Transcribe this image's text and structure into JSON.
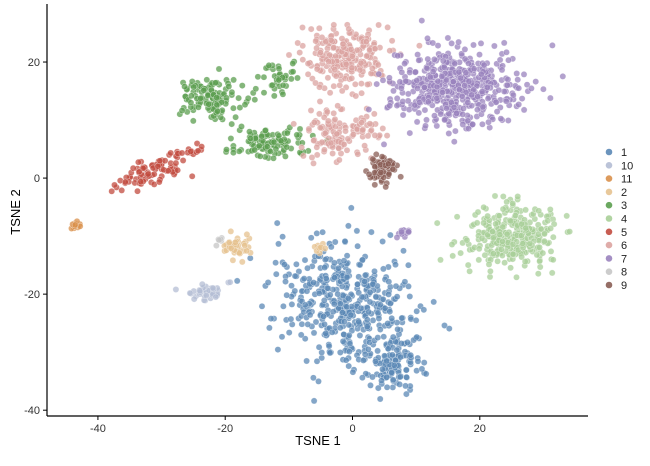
{
  "chart_data": {
    "type": "scatter",
    "title": "",
    "xlabel": "TSNE 1",
    "ylabel": "TSNE 2",
    "xlim": [
      -48,
      37
    ],
    "ylim": [
      -41,
      30
    ],
    "xticks": [
      -40,
      -20,
      0,
      20
    ],
    "yticks": [
      -40,
      -20,
      0,
      20
    ],
    "grid": false,
    "legend_position": "right",
    "point_opacity": 0.75,
    "series": [
      {
        "name": "1",
        "color": "#5b88b6",
        "clusters": [
          {
            "center": [
              -1,
              -22
            ],
            "spread": [
              7.5,
              6.0
            ],
            "count": 450,
            "rotation_deg": -35
          },
          {
            "center": [
              6,
              -32
            ],
            "spread": [
              3.0,
              3.0
            ],
            "count": 120,
            "rotation_deg": -35
          }
        ]
      },
      {
        "name": "10",
        "color": "#b4bdd4",
        "clusters": [
          {
            "center": [
              -23,
              -19.5
            ],
            "spread": [
              2.2,
              1.2
            ],
            "count": 45,
            "rotation_deg": 20
          }
        ]
      },
      {
        "name": "11",
        "color": "#d9904b",
        "clusters": [
          {
            "center": [
              -43.5,
              -8
            ],
            "spread": [
              0.7,
              0.4
            ],
            "count": 18,
            "rotation_deg": 0
          }
        ]
      },
      {
        "name": "2",
        "color": "#e6c28f",
        "clusters": [
          {
            "center": [
              -18,
              -12
            ],
            "spread": [
              1.6,
              1.6
            ],
            "count": 45,
            "rotation_deg": 0
          },
          {
            "center": [
              -5,
              -12
            ],
            "spread": [
              0.8,
              0.6
            ],
            "count": 10,
            "rotation_deg": 0
          }
        ]
      },
      {
        "name": "3",
        "color": "#5b9e4f",
        "clusters": [
          {
            "center": [
              -22,
              14
            ],
            "spread": [
              3.5,
              2.5
            ],
            "count": 130,
            "rotation_deg": 0
          },
          {
            "center": [
              -13,
              6
            ],
            "spread": [
              4.0,
              1.8
            ],
            "count": 110,
            "rotation_deg": 0
          },
          {
            "center": [
              -12,
              17
            ],
            "spread": [
              2.0,
              2.2
            ],
            "count": 40,
            "rotation_deg": 0
          }
        ]
      },
      {
        "name": "4",
        "color": "#a8cf98",
        "clusters": [
          {
            "center": [
              25,
              -10
            ],
            "spread": [
              4.5,
              3.5
            ],
            "count": 300,
            "rotation_deg": 0
          }
        ]
      },
      {
        "name": "5",
        "color": "#c24b3f",
        "clusters": [
          {
            "center": [
              -32,
              1
            ],
            "spread": [
              4.0,
              1.4
            ],
            "count": 90,
            "rotation_deg": 25
          },
          {
            "center": [
              -26,
              4.5
            ],
            "spread": [
              1.5,
              0.5
            ],
            "count": 12,
            "rotation_deg": 15
          }
        ]
      },
      {
        "name": "6",
        "color": "#dba3a0",
        "clusters": [
          {
            "center": [
              -1,
              21
            ],
            "spread": [
              4.5,
              3.5
            ],
            "count": 240,
            "rotation_deg": 0
          },
          {
            "center": [
              -4,
              8
            ],
            "spread": [
              2.5,
              3.5
            ],
            "count": 90,
            "rotation_deg": 0
          },
          {
            "center": [
              2,
              8
            ],
            "spread": [
              2.0,
              2.5
            ],
            "count": 40,
            "rotation_deg": 0
          }
        ]
      },
      {
        "name": "7",
        "color": "#9a83be",
        "clusters": [
          {
            "center": [
              16,
              16
            ],
            "spread": [
              6.5,
              4.5
            ],
            "count": 520,
            "rotation_deg": 0
          },
          {
            "center": [
              8,
              -9.5
            ],
            "spread": [
              0.8,
              0.6
            ],
            "count": 14,
            "rotation_deg": 0
          }
        ]
      },
      {
        "name": "8",
        "color": "#c6c6c6",
        "clusters": [
          {
            "center": [
              -21,
              -11
            ],
            "spread": [
              0.5,
              0.5
            ],
            "count": 6,
            "rotation_deg": 0
          }
        ]
      },
      {
        "name": "9",
        "color": "#8a5e55",
        "clusters": [
          {
            "center": [
              5,
              1.5
            ],
            "spread": [
              1.6,
              1.6
            ],
            "count": 80,
            "rotation_deg": 0
          }
        ]
      }
    ]
  }
}
